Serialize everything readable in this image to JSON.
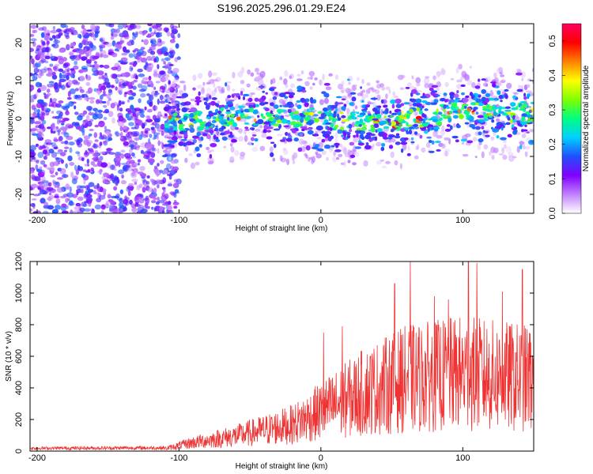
{
  "title": "S196.2025.296.01.29.E24",
  "chart_data": [
    {
      "type": "heatmap",
      "xlabel": "Height of straight line (km)",
      "ylabel": "Frequency (Hz)",
      "xlim": [
        -205,
        150
      ],
      "ylim": [
        -25,
        25
      ],
      "xticks": [
        -200,
        -100,
        0,
        100
      ],
      "yticks": [
        -20,
        -10,
        0,
        10,
        20
      ],
      "colorbar": {
        "label": "Normalized spectral amplitude",
        "range": [
          0,
          0.55
        ],
        "ticks": [
          "0.0",
          "0.1",
          "0.2",
          "0.3",
          "0.4",
          "0.5"
        ],
        "colors": [
          "#ffffff",
          "#c080ff",
          "#8000ff",
          "#2050ff",
          "#00d0ff",
          "#00ff80",
          "#80ff00",
          "#ffff00",
          "#ff8000",
          "#ff0000",
          "#ff0060"
        ]
      },
      "signal_center_hz": [
        {
          "x": -100,
          "y": -1
        },
        {
          "x": -50,
          "y": 1
        },
        {
          "x": 0,
          "y": 0
        },
        {
          "x": 50,
          "y": -1
        },
        {
          "x": 100,
          "y": 2
        },
        {
          "x": 150,
          "y": 1
        }
      ]
    },
    {
      "type": "line",
      "xlabel": "Height of straight line (km)",
      "ylabel": "SNR (10 * v/v)",
      "xlim": [
        -205,
        150
      ],
      "ylim": [
        0,
        1200
      ],
      "xticks": [
        -200,
        -100,
        0,
        100
      ],
      "yticks": [
        0,
        200,
        400,
        600,
        800,
        1000,
        1200
      ],
      "color": "#ee3333",
      "envelope": [
        {
          "x": -205,
          "y": 20
        },
        {
          "x": -110,
          "y": 25
        },
        {
          "x": -90,
          "y": 90
        },
        {
          "x": -60,
          "y": 160
        },
        {
          "x": -20,
          "y": 280
        },
        {
          "x": 0,
          "y": 420
        },
        {
          "x": 30,
          "y": 620
        },
        {
          "x": 60,
          "y": 760
        },
        {
          "x": 100,
          "y": 820
        },
        {
          "x": 150,
          "y": 760
        }
      ],
      "peaks": [
        {
          "x": 63,
          "y": 1200
        },
        {
          "x": 104,
          "y": 1200
        },
        {
          "x": 110,
          "y": 1190
        },
        {
          "x": 142,
          "y": 1150
        },
        {
          "x": 52,
          "y": 1060
        },
        {
          "x": 128,
          "y": 1010
        },
        {
          "x": 80,
          "y": 980
        },
        {
          "x": 90,
          "y": 960
        },
        {
          "x": 2,
          "y": 750
        },
        {
          "x": 15,
          "y": 790
        }
      ]
    }
  ]
}
